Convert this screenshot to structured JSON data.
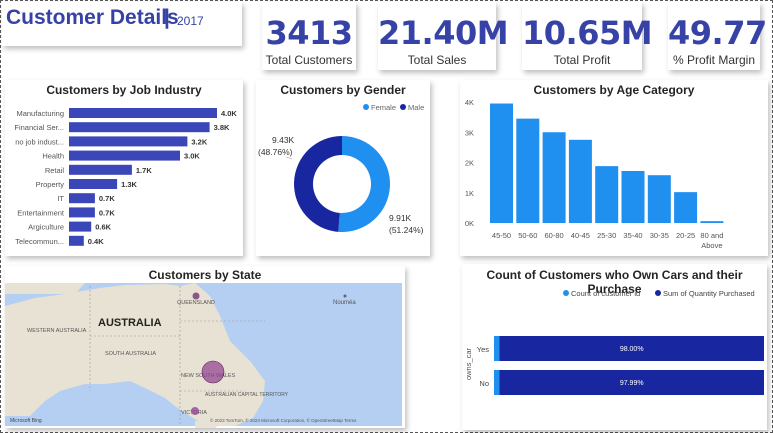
{
  "header": {
    "title": "Customer Details",
    "separator": "|",
    "year": "2017"
  },
  "kpis": [
    {
      "value": "3413",
      "label": "Total Customers"
    },
    {
      "value": "21.40M",
      "label": "Total Sales"
    },
    {
      "value": "10.65M",
      "label": "Total Profit"
    },
    {
      "value": "49.77",
      "label": "% Profit Margin"
    }
  ],
  "colors": {
    "accent": "#3742a6",
    "bar": "#3b46b8",
    "donut_female": "#1f8ff0",
    "donut_male": "#1826a0",
    "cars_count": "#1f8ff0",
    "cars_sum": "#1826a0"
  },
  "map": {
    "title": "Customers by State",
    "labels": {
      "australia": "AUSTRALIA",
      "western_australia": "WESTERN AUSTRALIA",
      "south_australia": "SOUTH AUSTRALIA",
      "queensland": "QUEENSLAND",
      "nsw": "NEW SOUTH WALES",
      "act": "AUSTRALIAN CAPITAL TERRITORY",
      "victoria": "VICTORIA",
      "noumea": "Nouméa"
    },
    "attribution": "© 2023 TomTom, © 2023 Microsoft Corporation, © OpenStreetMap  Terms",
    "logo": "Microsoft Bing"
  },
  "chart_data": [
    {
      "type": "bar",
      "orientation": "horizontal",
      "title": "Customers by Job Industry",
      "categories": [
        "Manufacturing",
        "Financial Ser...",
        "no job indust...",
        "Health",
        "Retail",
        "Property",
        "IT",
        "Entertainment",
        "Argiculture",
        "Telecommun..."
      ],
      "values": [
        4.0,
        3.8,
        3.2,
        3.0,
        1.7,
        1.3,
        0.7,
        0.7,
        0.6,
        0.4
      ],
      "data_labels": [
        "4.0K",
        "3.8K",
        "3.2K",
        "3.0K",
        "1.7K",
        "1.3K",
        "0.7K",
        "0.7K",
        "0.6K",
        "0.4K"
      ],
      "unit": "K",
      "xlim": [
        0,
        4.0
      ]
    },
    {
      "type": "pie",
      "variant": "donut",
      "title": "Customers by Gender",
      "legend": [
        "Female",
        "Male"
      ],
      "values": [
        9.91,
        9.43
      ],
      "value_labels": [
        "9.91K",
        "9.43K"
      ],
      "percent_labels": [
        "(51.24%)",
        "(48.76%)"
      ],
      "unit": "K"
    },
    {
      "type": "bar",
      "title": "Customers by Age Category",
      "categories": [
        "45-50",
        "50-60",
        "60-80",
        "40-45",
        "25-30",
        "35-40",
        "30-35",
        "20-25",
        "80 and Above"
      ],
      "values": [
        3.95,
        3.45,
        3.0,
        2.75,
        1.88,
        1.72,
        1.58,
        1.02,
        0.06
      ],
      "yticks": [
        "0K",
        "1K",
        "2K",
        "3K",
        "4K"
      ],
      "ylim": [
        0,
        4
      ],
      "grid": false
    },
    {
      "type": "bar",
      "orientation": "horizontal",
      "stacked": "100%",
      "title": "Count of Customers who Own Cars and their Purchase",
      "ylabel": "owns_car",
      "categories": [
        "Yes",
        "No"
      ],
      "series": [
        {
          "name": "Count of customer id",
          "values": [
            2.0,
            2.01
          ]
        },
        {
          "name": "Sum of Quantity Purchased",
          "values": [
            98.0,
            97.99
          ]
        }
      ],
      "data_labels": [
        "98.00%",
        "97.99%"
      ]
    }
  ]
}
